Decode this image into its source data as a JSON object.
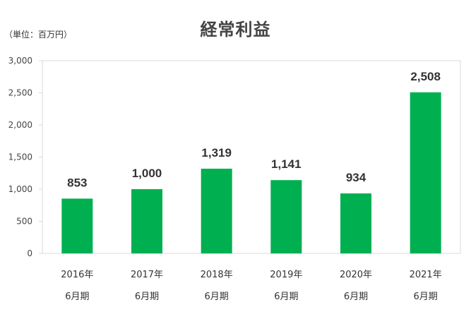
{
  "chart_data": {
    "type": "bar",
    "title": "経常利益",
    "unit_note": "（単位：百万円）",
    "categories": [
      {
        "line1": "2016年",
        "line2": "6月期"
      },
      {
        "line1": "2017年",
        "line2": "6月期"
      },
      {
        "line1": "2018年",
        "line2": "6月期"
      },
      {
        "line1": "2019年",
        "line2": "6月期"
      },
      {
        "line1": "2020年",
        "line2": "6月期"
      },
      {
        "line1": "2021年",
        "line2": "6月期"
      }
    ],
    "values": [
      853,
      1000,
      1319,
      1141,
      934,
      2508
    ],
    "value_labels": [
      "853",
      "1,000",
      "1,319",
      "1,141",
      "934",
      "2,508"
    ],
    "ylim": [
      0,
      3000
    ],
    "yticks": [
      0,
      500,
      1000,
      1500,
      2000,
      2500,
      3000
    ],
    "ytick_labels": [
      "0",
      "500",
      "1,000",
      "1,500",
      "2,000",
      "2,500",
      "3,000"
    ],
    "grid": false,
    "legend": "none",
    "colors": {
      "bar": "#00B050",
      "axis": "#D9D9D9"
    }
  }
}
